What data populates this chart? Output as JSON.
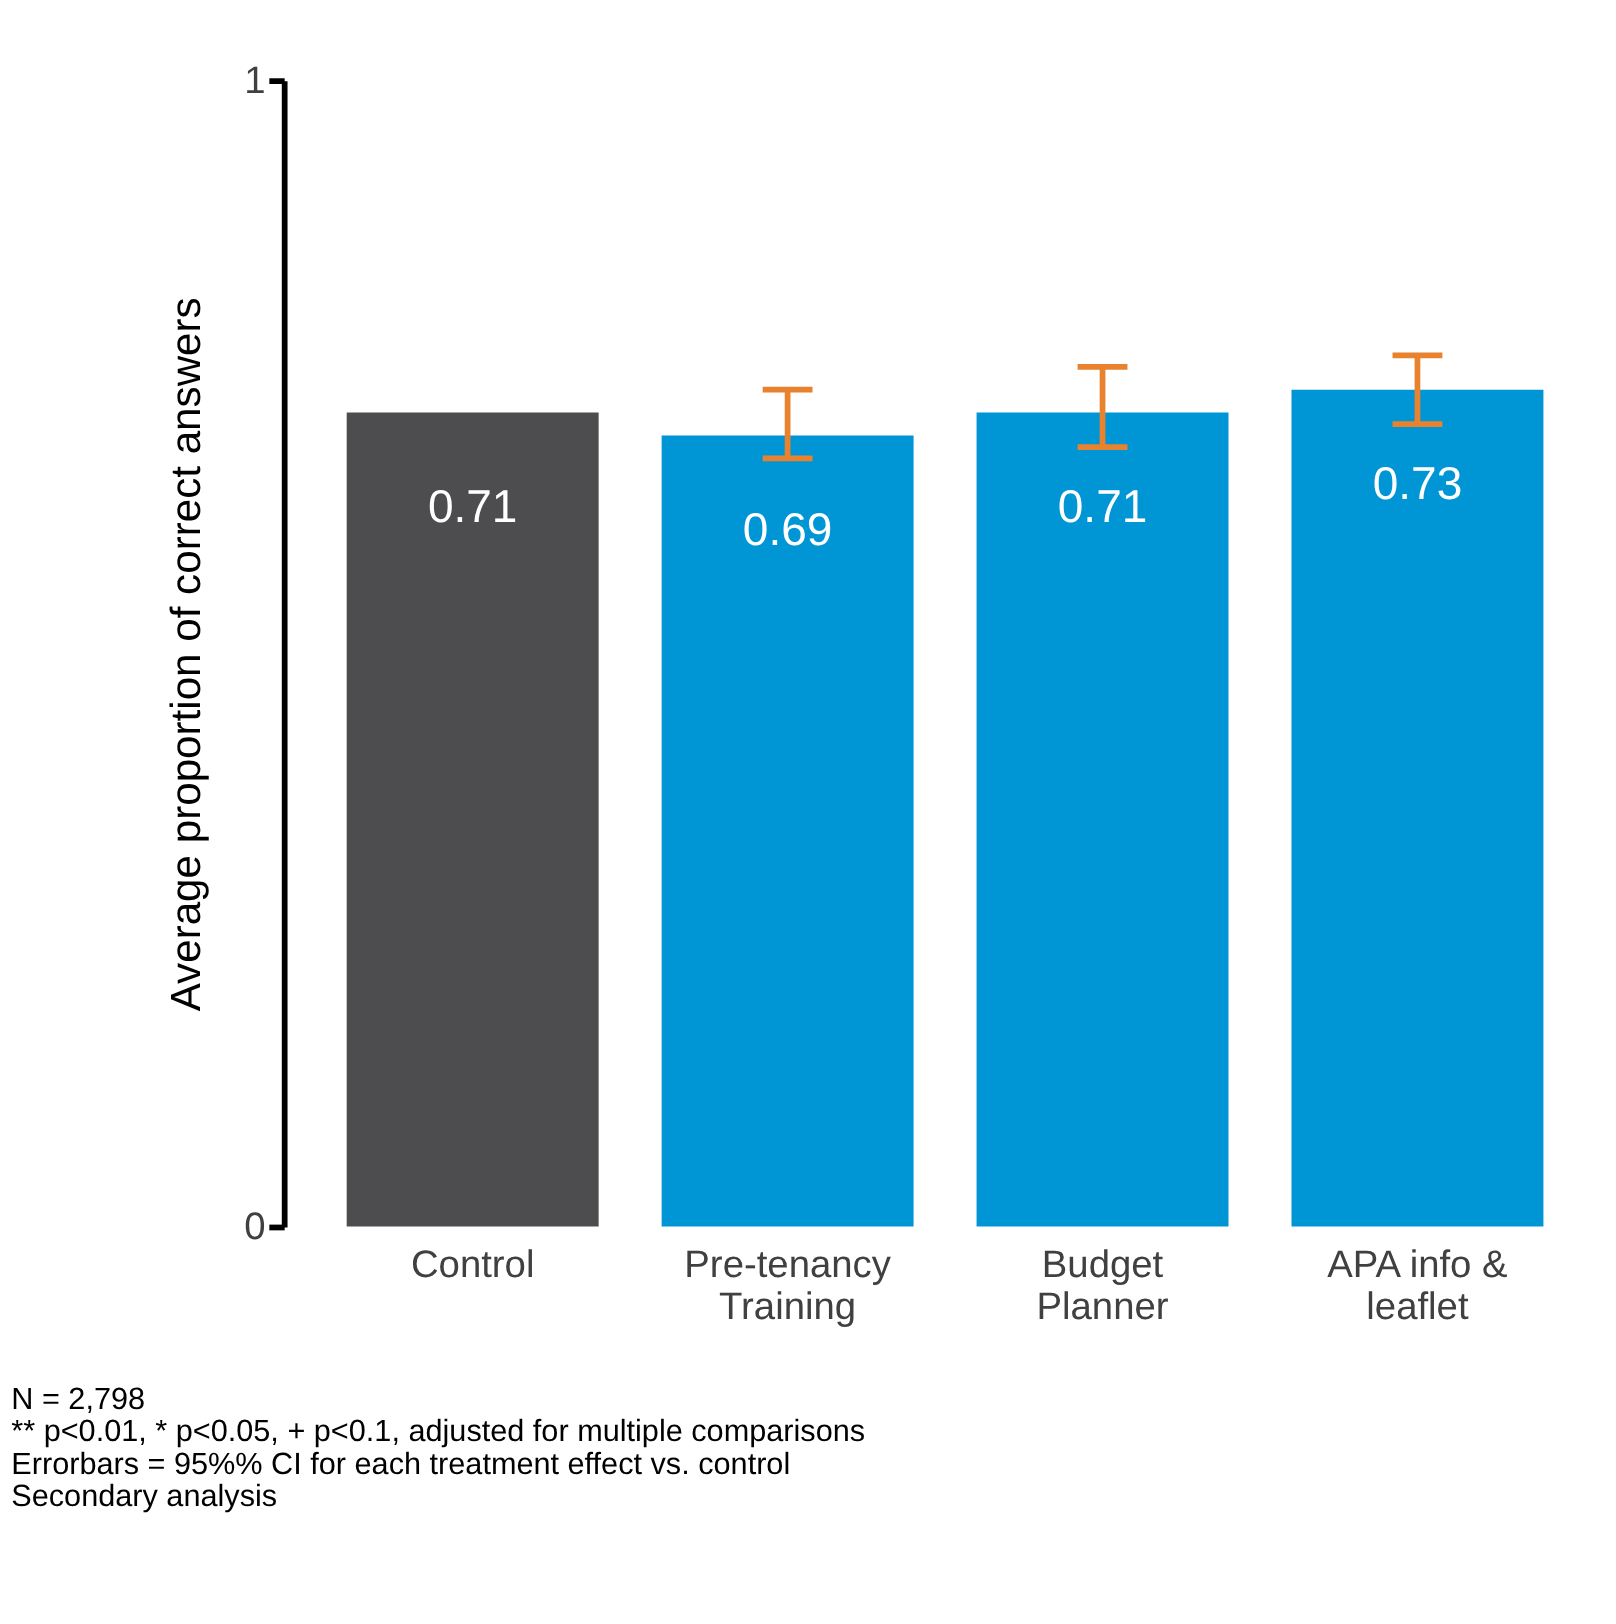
{
  "chart_data": {
    "type": "bar",
    "categories": [
      "Control",
      "Pre-tenancy\nTraining",
      "Budget\nPlanner",
      "APA info &\nleaflet"
    ],
    "values": [
      0.71,
      0.69,
      0.71,
      0.73
    ],
    "colors": [
      "#4d4d4f",
      "#0096d6",
      "#0096d6",
      "#0096d6"
    ],
    "errors": [
      null,
      [
        0.67,
        0.73
      ],
      [
        0.68,
        0.75
      ],
      [
        0.7,
        0.76
      ]
    ],
    "ylabel": "Average proportion of correct answers",
    "ylim": [
      0,
      1
    ],
    "yticks": [
      0,
      1
    ],
    "grid": false,
    "data_labels": true,
    "annotations": [
      " N = 2,798",
      "** p<0.01, * p<0.05, + p<0.1, adjusted for multiple comparisons",
      "Errorbars = 95%% CI for each treatment effect vs. control",
      "Secondary analysis"
    ]
  }
}
